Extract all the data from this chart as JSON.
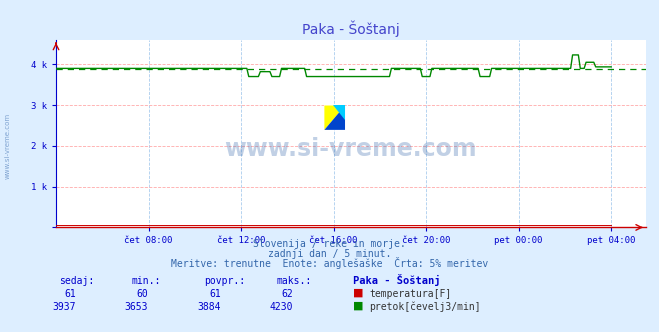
{
  "title": "Paka - Šoštanj",
  "bg_color": "#ddeeff",
  "plot_bg_color": "#ffffff",
  "grid_color_h": "#ffaaaa",
  "grid_color_v": "#aaccee",
  "title_color": "#4444cc",
  "axis_color": "#0000cc",
  "tick_color": "#0000cc",
  "flow_color": "#008800",
  "flow_avg_color": "#008800",
  "temp_color": "#cc0000",
  "x_tick_labels": [
    "čet 08:00",
    "čet 12:00",
    "čet 16:00",
    "čet 20:00",
    "pet 00:00",
    "pet 04:00"
  ],
  "x_tick_positions": [
    4,
    8,
    12,
    16,
    20,
    24
  ],
  "y_ticks": [
    0,
    1000,
    2000,
    3000,
    4000
  ],
  "y_tick_labels": [
    "",
    "1 k",
    "2 k",
    "3 k",
    "4 k"
  ],
  "ylim": [
    0,
    4600
  ],
  "xlim": [
    0,
    25.5
  ],
  "flow_avg": 3884,
  "temp_val": 61,
  "subtitle1": "Slovenija / reke in morje.",
  "subtitle2": "zadnji dan / 5 minut.",
  "subtitle3": "Meritve: trenutne  Enote: anglešaške  Črta: 5% meritev",
  "label_sedaj": "sedaj:",
  "label_min": "min.:",
  "label_povpr": "povpr.:",
  "label_maks": "maks.:",
  "label_station": "Paka - Šoštanj",
  "temp_sedaj": 61,
  "temp_min": 60,
  "temp_povpr": 61,
  "temp_maks": 62,
  "flow_sedaj": 3937,
  "flow_min": 3653,
  "flow_povpr": 3884,
  "flow_maks": 4230,
  "label_temp": "temperatura[F]",
  "label_flow": "pretok[čevelj3/min]",
  "watermark": "www.si-vreme.com",
  "left_watermark": "www.si-vreme.com"
}
